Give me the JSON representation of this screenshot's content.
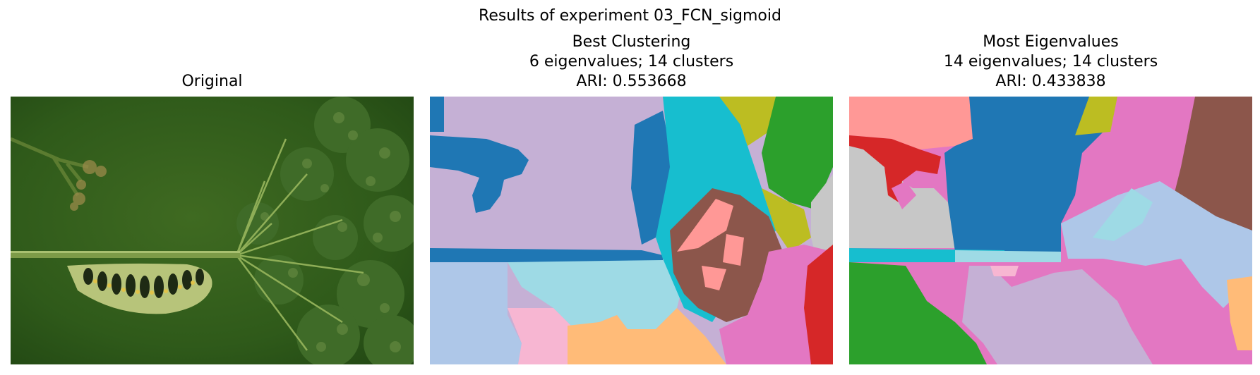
{
  "figure": {
    "title": "Results of experiment 03_FCN_sigmoid"
  },
  "panels": [
    {
      "title_lines": [
        "Original"
      ],
      "kind": "photo",
      "description_icon": "caterpillar-photo"
    },
    {
      "title_lines": [
        "Best Clustering",
        "6 eigenvalues; 14 clusters",
        "ARI: 0.553668"
      ],
      "kind": "segmentation",
      "eigenvalues": 6,
      "clusters": 14,
      "ari": 0.553668
    },
    {
      "title_lines": [
        "Most Eigenvalues",
        "14 eigenvalues; 14 clusters",
        "ARI: 0.433838"
      ],
      "kind": "segmentation",
      "eigenvalues": 14,
      "clusters": 14,
      "ari": 0.433838
    }
  ],
  "chart_data": {
    "type": "image-grid",
    "title": "Results of experiment 03_FCN_sigmoid",
    "subplots": [
      {
        "title": "Original"
      },
      {
        "title": "Best Clustering",
        "eigenvalues": 6,
        "clusters": 14,
        "ari": 0.553668
      },
      {
        "title": "Most Eigenvalues",
        "eigenvalues": 14,
        "clusters": 14,
        "ari": 0.433838
      }
    ]
  },
  "palette": {
    "blue": "#1f77b4",
    "lavender": "#c5b0d5",
    "light_blue": "#aec7e8",
    "cyan_light": "#9edae5",
    "cyan": "#17becf",
    "olive": "#bcbd22",
    "green": "#2ca02c",
    "gray": "#c7c7c7",
    "salmon": "#ff9896",
    "brown": "#8c564b",
    "pink": "#e377c2",
    "pink_light": "#f7b6d2",
    "orange_light": "#ffbb78",
    "red": "#d62728"
  }
}
